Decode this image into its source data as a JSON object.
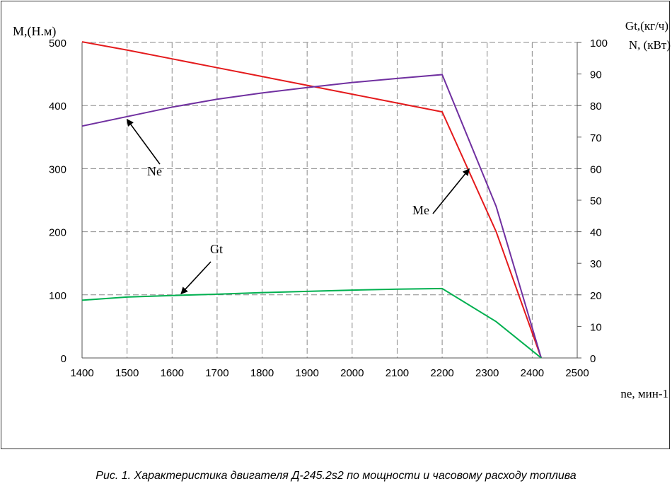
{
  "chart_data": {
    "type": "line",
    "x": [
      1400,
      1500,
      1600,
      1700,
      1800,
      1900,
      2000,
      2100,
      2200,
      2320,
      2420
    ],
    "xlabel": "ne, мин-1",
    "xlim": [
      1400,
      2500
    ],
    "xticks": [
      "1400",
      "1500",
      "1600",
      "1700",
      "1800",
      "1900",
      "2000",
      "2100",
      "2200",
      "2300",
      "2400",
      "2500"
    ],
    "ylabel_left": "M,(Н.м)",
    "ylim_left": [
      0,
      500
    ],
    "yticks_left": [
      "0",
      "100",
      "200",
      "300",
      "400",
      "500"
    ],
    "ylabel_right_1": "Gt,(кг/ч)",
    "ylabel_right_2": "N, (кВт)",
    "ylim_right": [
      0,
      100
    ],
    "yticks_right": [
      "0",
      "10",
      "20",
      "30",
      "40",
      "50",
      "60",
      "70",
      "80",
      "90",
      "100"
    ],
    "grid": true,
    "series": [
      {
        "name": "Me",
        "axis": "left",
        "color": "#e41a1c",
        "values": [
          501,
          488,
          474,
          460,
          446,
          432,
          418,
          404,
          390,
          200,
          0
        ]
      },
      {
        "name": "Ne",
        "axis": "right",
        "color": "#7030a0",
        "values": [
          73.5,
          76.5,
          79.5,
          82,
          84,
          85.7,
          87.3,
          88.6,
          89.8,
          48,
          0
        ]
      },
      {
        "name": "Gt",
        "axis": "right",
        "color": "#00b050",
        "values": [
          18.3,
          19.3,
          19.8,
          20.2,
          20.7,
          21.1,
          21.5,
          21.8,
          22,
          11.5,
          0
        ]
      }
    ],
    "annotations": [
      {
        "text": "Ne",
        "series": "Ne",
        "x": 1500
      },
      {
        "text": "Me",
        "series": "Me",
        "x": 2260
      },
      {
        "text": "Gt",
        "series": "Gt",
        "x": 1620
      }
    ]
  },
  "caption": "Рис. 1. Характеристика двигателя Д-245.2s2 по мощности и часовому  расходу топлива"
}
